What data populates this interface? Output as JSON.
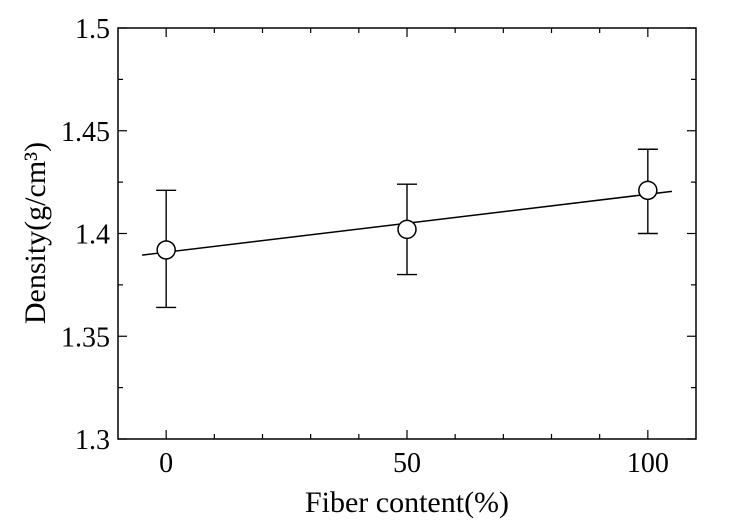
{
  "chart_data": {
    "type": "scatter",
    "xlabel": "Fiber content(%)",
    "ylabel": "Density(g/cm³)",
    "xlim": [
      -10,
      110
    ],
    "ylim": [
      1.3,
      1.5
    ],
    "x_ticks": [
      0,
      50,
      100
    ],
    "x_tick_labels": [
      "0",
      "50",
      "100"
    ],
    "y_ticks": [
      1.3,
      1.35,
      1.4,
      1.45,
      1.5
    ],
    "y_tick_labels": [
      "1.3",
      "1.35",
      "1.4",
      "1.45",
      "1.5"
    ],
    "grid": false,
    "legend": "none",
    "series": [
      {
        "marker": "open-circle",
        "x": [
          0,
          50,
          100
        ],
        "y": [
          1.392,
          1.402,
          1.421
        ],
        "err_low": [
          1.364,
          1.38,
          1.4
        ],
        "err_high": [
          1.421,
          1.424,
          1.441
        ]
      }
    ],
    "fit_line": {
      "x": [
        -5,
        105
      ],
      "y": [
        1.3895,
        1.4205
      ]
    }
  }
}
